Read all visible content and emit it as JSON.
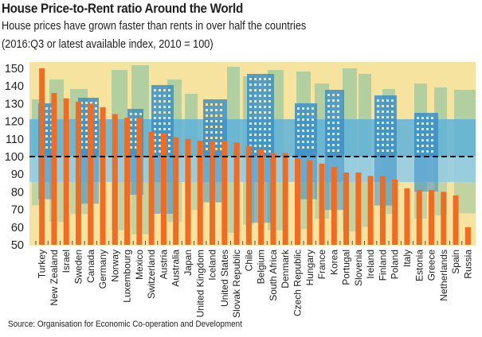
{
  "header": {
    "title": "House Price-to-Rent ratio Around the World",
    "subtitle": "House prices have grown faster than rents in over half the countries",
    "note": "(2016:Q3 or latest available index, 2010 = 100)"
  },
  "footer": {
    "source": "Source: Organisation for Economic Co-operation and Development"
  },
  "colors": {
    "bar": "#f26b21",
    "background": "#f7e3a0",
    "skyline_green": "#a9cc9f",
    "skyline_blue": "#3b8fc8",
    "reference_line": "#111111"
  },
  "chart_data": {
    "type": "bar",
    "title": "House Price-to-Rent ratio Around the World",
    "subtitle": "House prices have grown faster than rents in over half the countries",
    "xlabel": "",
    "ylabel": "",
    "ylim": [
      50,
      150
    ],
    "yticks": [
      150,
      140,
      130,
      120,
      110,
      100,
      90,
      80,
      70,
      60,
      50
    ],
    "reference_line": 100,
    "grid": false,
    "legend": "none",
    "categories": [
      "Turkey",
      "New Zealand",
      "Israel",
      "Sweden",
      "Canada",
      "Germany",
      "Norway",
      "Luxembourg",
      "Mexico",
      "Switzerland",
      "Austria",
      "Australia",
      "Japan",
      "United Kingdom",
      "Iceland",
      "United States",
      "Slovak Republic",
      "Chile",
      "Belgium",
      "South Africa",
      "Denmark",
      "Czech Republic",
      "Hungary",
      "France",
      "Korea",
      "Portugal",
      "Slovenia",
      "Ireland",
      "Finland",
      "Poland",
      "Italy",
      "Estonia",
      "Greece",
      "Netherlands",
      "Spain",
      "Russia"
    ],
    "values": [
      150,
      136,
      133,
      131,
      130,
      128,
      124,
      122,
      122,
      114,
      113,
      111,
      110,
      109,
      109,
      109,
      108,
      106,
      104,
      102,
      102,
      99,
      98,
      96,
      94,
      91,
      91,
      89,
      89,
      87,
      82,
      81,
      81,
      80,
      78,
      60
    ]
  }
}
